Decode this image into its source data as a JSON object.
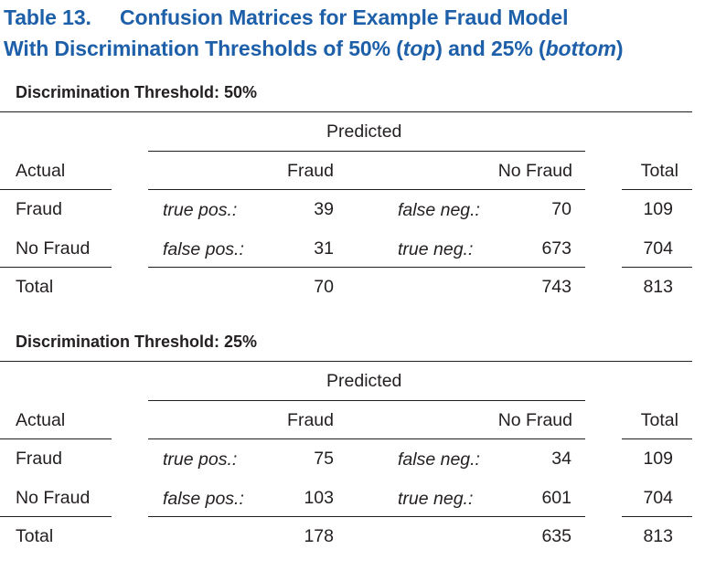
{
  "title": {
    "label": "Table 13.",
    "line1": "Confusion Matrices for Example Fraud Model",
    "line2_pre": "With Discrimination Thresholds of 50% (",
    "line2_top": "top",
    "line2_mid": ") and 25% (",
    "line2_bottom": "bottom",
    "line2_post": ")"
  },
  "tables": [
    {
      "heading": "Discrimination Threshold: 50%",
      "predicted": "Predicted",
      "actual": "Actual",
      "col_fraud": "Fraud",
      "col_nofraud": "No Fraud",
      "col_total": "Total",
      "rows": [
        {
          "label": "Fraud",
          "c1_tag": "true pos.:",
          "c1": "39",
          "c2_tag": "false neg.:",
          "c2": "70",
          "total": "109"
        },
        {
          "label": "No Fraud",
          "c1_tag": "false pos.:",
          "c1": "31",
          "c2_tag": "true neg.:",
          "c2": "673",
          "total": "704"
        }
      ],
      "totals": {
        "label": "Total",
        "c1": "70",
        "c2": "743",
        "total": "813"
      }
    },
    {
      "heading": "Discrimination Threshold: 25%",
      "predicted": "Predicted",
      "actual": "Actual",
      "col_fraud": "Fraud",
      "col_nofraud": "No Fraud",
      "col_total": "Total",
      "rows": [
        {
          "label": "Fraud",
          "c1_tag": "true pos.:",
          "c1": "75",
          "c2_tag": "false neg.:",
          "c2": "34",
          "total": "109"
        },
        {
          "label": "No Fraud",
          "c1_tag": "false pos.:",
          "c1": "103",
          "c2_tag": "true neg.:",
          "c2": "601",
          "total": "704"
        }
      ],
      "totals": {
        "label": "Total",
        "c1": "178",
        "c2": "635",
        "total": "813"
      }
    }
  ]
}
